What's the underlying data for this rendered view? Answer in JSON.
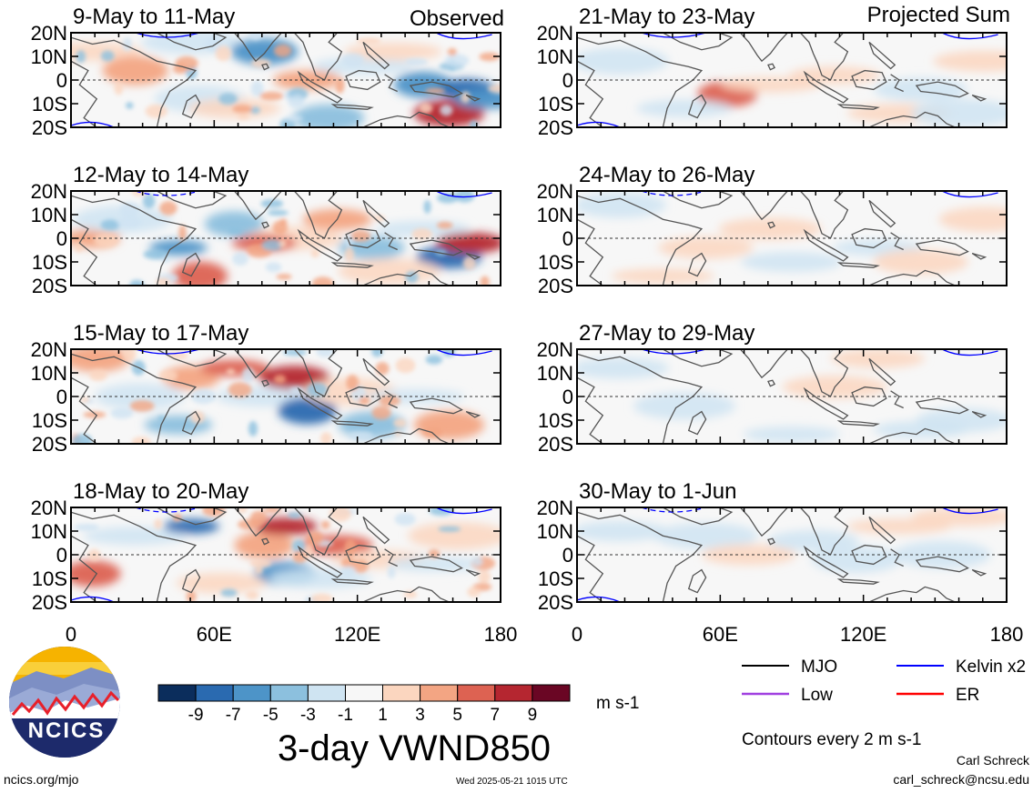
{
  "figure": {
    "title": "3-day VWND850",
    "column_headers": {
      "left": "Observed",
      "right": "Projected Sum"
    },
    "panels": [
      {
        "title": "9-May to 11-May",
        "column": "left",
        "row": 0
      },
      {
        "title": "12-May to 14-May",
        "column": "left",
        "row": 1
      },
      {
        "title": "15-May to 17-May",
        "column": "left",
        "row": 2
      },
      {
        "title": "18-May to 20-May",
        "column": "left",
        "row": 3
      },
      {
        "title": "21-May to 23-May",
        "column": "right",
        "row": 0
      },
      {
        "title": "24-May to 26-May",
        "column": "right",
        "row": 1
      },
      {
        "title": "27-May to 29-May",
        "column": "right",
        "row": 2
      },
      {
        "title": "30-May to 1-Jun",
        "column": "right",
        "row": 3
      }
    ],
    "lat_labels": [
      "20N",
      "10N",
      "0",
      "10S",
      "20S"
    ],
    "lon_labels": [
      "0",
      "60E",
      "120E",
      "180"
    ]
  },
  "colorbar": {
    "labels": [
      "-9",
      "-7",
      "-5",
      "-3",
      "-1",
      "1",
      "3",
      "5",
      "7",
      "9"
    ],
    "colors": [
      "#0b2d5c",
      "#2a6ab0",
      "#4d94c8",
      "#8cc0de",
      "#cfe4f2",
      "#f7f7f7",
      "#fbd6bf",
      "#f3a583",
      "#dd6252",
      "#b52630",
      "#6a0624"
    ],
    "units": "m s-1"
  },
  "legend": {
    "items": [
      {
        "label": "MJO",
        "color": "#000000"
      },
      {
        "label": "Kelvin x2",
        "color": "#0000ff"
      },
      {
        "label": "Low",
        "color": "#a040e0"
      },
      {
        "label": "ER",
        "color": "#ff0000"
      }
    ],
    "note": "Contours every 2 m s-1"
  },
  "footer": {
    "logo_text": "NCICS",
    "url": "ncics.org/mjo",
    "timestamp": "Wed 2025-05-21 1015 UTC",
    "author": "Carl Schreck",
    "email": "carl_schreck@ncsu.edu"
  }
}
